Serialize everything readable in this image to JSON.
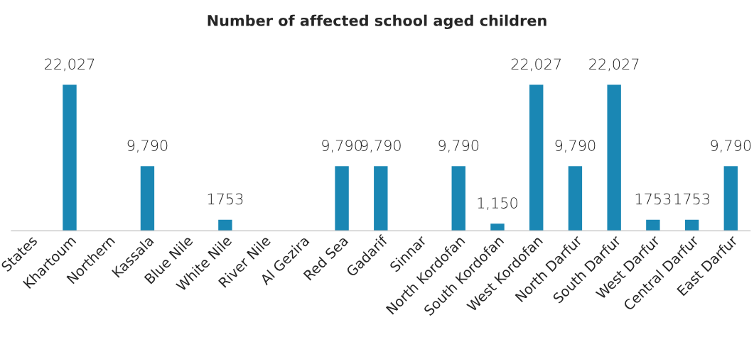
{
  "chart_data": {
    "type": "bar",
    "title": "Number of affected school aged children",
    "categories": [
      "States",
      "Khartoum",
      "Northern",
      "Kassala",
      "Blue Nile",
      "White Nile",
      "River Nile",
      "Al Gezira",
      "Red Sea",
      "Gadarif",
      "Sinnar",
      "North Kordofan",
      "South Kordofan",
      "West Kordofan",
      "North Darfur",
      "South Darfur",
      "West Darfur",
      "Central Darfur",
      "East Darfur"
    ],
    "values": [
      null,
      22027,
      null,
      9790,
      null,
      1753,
      null,
      null,
      9790,
      9790,
      null,
      9790,
      1150,
      22027,
      9790,
      22027,
      1753,
      1753,
      9790
    ],
    "value_labels": [
      null,
      "22,027",
      null,
      "9,790",
      null,
      "1753",
      null,
      null,
      "9,790",
      "9,790",
      null,
      "9,790",
      "1,150",
      "22,027",
      "9,790",
      "22,027",
      "1753",
      "1753",
      "9,790"
    ],
    "color": "#1a87b4",
    "grid": false,
    "legend": false,
    "tick_labels": "x"
  }
}
